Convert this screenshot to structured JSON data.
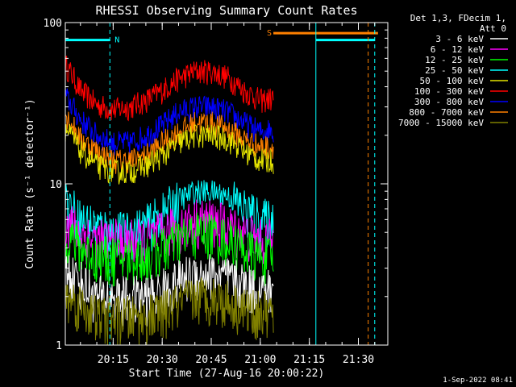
{
  "chart_data": {
    "type": "line",
    "title": "RHESSI Observing Summary Count Rates",
    "xlabel": "Start Time (27-Aug-16 20:00:22)",
    "ylabel": "Count Rate (s⁻¹ detector⁻¹)",
    "y_scale": "log",
    "ylim": [
      1,
      100
    ],
    "xlim": [
      "20:00:22",
      "21:39:00"
    ],
    "y_ticks": [
      "1",
      "10",
      "100"
    ],
    "x_ticks": [
      "20:15",
      "20:30",
      "20:45",
      "21:00",
      "21:15",
      "21:30"
    ],
    "legend": {
      "position": "top-right",
      "header": [
        "Det 1,3, FDecim 1,",
        "Att 0"
      ],
      "entries": [
        {
          "label": "3 - 6 keV",
          "color": "#ffffff"
        },
        {
          "label": "6 - 12 keV",
          "color": "#ff00ff"
        },
        {
          "label": "12 - 25 keV",
          "color": "#00ff00"
        },
        {
          "label": "25 - 50 keV",
          "color": "#00ffff"
        },
        {
          "label": "50 - 100 keV",
          "color": "#e6e600"
        },
        {
          "label": "100 - 300 keV",
          "color": "#ff0000"
        },
        {
          "label": "300 - 800 keV",
          "color": "#0000ff"
        },
        {
          "label": "800 - 7000 keV",
          "color": "#ff8000"
        },
        {
          "label": "7000 - 15000 keV",
          "color": "#808000"
        }
      ]
    },
    "series": [
      {
        "band": "100 - 300 keV",
        "color": "#ff0000",
        "x": [
          "20:00:22",
          "20:05",
          "20:10",
          "20:15",
          "20:20",
          "20:25",
          "20:30",
          "20:35",
          "20:40",
          "20:45",
          "20:50",
          "20:55",
          "21:00",
          "21:04"
        ],
        "values": [
          55,
          38,
          31,
          29,
          30,
          33,
          38,
          45,
          50,
          50,
          46,
          38,
          33,
          34
        ]
      },
      {
        "band": "300 - 800 keV",
        "color": "#0000ff",
        "x": [
          "20:00:22",
          "20:05",
          "20:10",
          "20:15",
          "20:20",
          "20:25",
          "20:30",
          "20:35",
          "20:40",
          "20:45",
          "20:50",
          "20:55",
          "21:00",
          "21:04"
        ],
        "values": [
          35,
          25,
          20,
          18,
          18,
          20,
          23,
          28,
          30,
          30,
          28,
          24,
          21,
          22
        ]
      },
      {
        "band": "800 - 7000 keV",
        "color": "#ff8000",
        "x": [
          "20:00:22",
          "20:05",
          "20:10",
          "20:15",
          "20:20",
          "20:25",
          "20:30",
          "20:35",
          "20:40",
          "20:45",
          "20:50",
          "20:55",
          "21:00",
          "21:04"
        ],
        "values": [
          27,
          19,
          16,
          14,
          14,
          15,
          18,
          21,
          24,
          24,
          22,
          19,
          17,
          17
        ]
      },
      {
        "band": "50 - 100 keV",
        "color": "#e6e600",
        "x": [
          "20:00:22",
          "20:05",
          "20:10",
          "20:15",
          "20:20",
          "20:25",
          "20:30",
          "20:35",
          "20:40",
          "20:45",
          "20:50",
          "20:55",
          "21:00",
          "21:04"
        ],
        "values": [
          22,
          16,
          13,
          12,
          12,
          13,
          15,
          18,
          20,
          20,
          19,
          16,
          14,
          14
        ]
      },
      {
        "band": "25 - 50 keV",
        "color": "#00ffff",
        "x": [
          "20:00:22",
          "20:05",
          "20:10",
          "20:15",
          "20:20",
          "20:25",
          "20:30",
          "20:35",
          "20:40",
          "20:45",
          "20:50",
          "20:55",
          "21:00",
          "21:04"
        ],
        "values": [
          8,
          6,
          5.5,
          5,
          5,
          5.5,
          6.5,
          8,
          9,
          9,
          8.5,
          7,
          6,
          6
        ]
      },
      {
        "band": "6 - 12 keV",
        "color": "#ff00ff",
        "x": [
          "20:00:22",
          "20:05",
          "20:10",
          "20:15",
          "20:20",
          "20:25",
          "20:30",
          "20:35",
          "20:40",
          "20:45",
          "20:50",
          "20:55",
          "21:00",
          "21:04"
        ],
        "values": [
          6,
          5,
          4.5,
          4.5,
          4.5,
          4.5,
          5,
          5.5,
          6,
          6,
          5.5,
          5,
          4.5,
          4.5
        ]
      },
      {
        "band": "12 - 25 keV",
        "color": "#00ff00",
        "x": [
          "20:00:22",
          "20:05",
          "20:10",
          "20:15",
          "20:20",
          "20:25",
          "20:30",
          "20:35",
          "20:40",
          "20:45",
          "20:50",
          "20:55",
          "21:00",
          "21:04"
        ],
        "values": [
          5,
          4,
          3.5,
          3.5,
          3.5,
          3.5,
          4,
          4.5,
          5,
          5,
          4.5,
          4,
          3.5,
          3.5
        ]
      },
      {
        "band": "3 - 6 keV",
        "color": "#ffffff",
        "x": [
          "20:00:22",
          "20:05",
          "20:10",
          "20:15",
          "20:20",
          "20:25",
          "20:30",
          "20:35",
          "20:40",
          "20:45",
          "20:50",
          "20:55",
          "21:00",
          "21:04"
        ],
        "values": [
          3,
          2.5,
          2,
          2,
          2,
          2,
          2.2,
          2.5,
          2.8,
          2.8,
          2.6,
          2.4,
          2.2,
          2.2
        ]
      },
      {
        "band": "7000 - 15000 keV",
        "color": "#808000",
        "x": [
          "20:00:22",
          "20:05",
          "20:10",
          "20:15",
          "20:20",
          "20:25",
          "20:30",
          "20:35",
          "20:40",
          "20:45",
          "20:50",
          "20:55",
          "21:00",
          "21:04"
        ],
        "values": [
          2,
          1.8,
          1.5,
          1.5,
          1.5,
          1.5,
          1.6,
          1.8,
          2,
          2,
          1.9,
          1.7,
          1.6,
          1.6
        ]
      }
    ],
    "flags": [
      {
        "label": "N",
        "color": "#00ffff",
        "x_start": "20:00:22",
        "x_end": "20:14",
        "y": 78
      },
      {
        "label": "S",
        "color": "#ff8000",
        "x_start": "21:04",
        "x_end": "21:36",
        "y": 86
      },
      {
        "label": "",
        "color": "#00ffff",
        "x_start": "21:17",
        "x_end": "21:35",
        "y": 78
      }
    ],
    "vertical_markers": [
      {
        "x": "20:14",
        "color": "#00ffff",
        "style": "dashed"
      },
      {
        "x": "21:17",
        "color": "#00ffff",
        "style": "solid"
      },
      {
        "x": "21:33",
        "color": "#ff8000",
        "style": "dashed"
      },
      {
        "x": "21:35",
        "color": "#00ffff",
        "style": "dashed"
      }
    ],
    "timestamp": "1-Sep-2022 08:41"
  }
}
